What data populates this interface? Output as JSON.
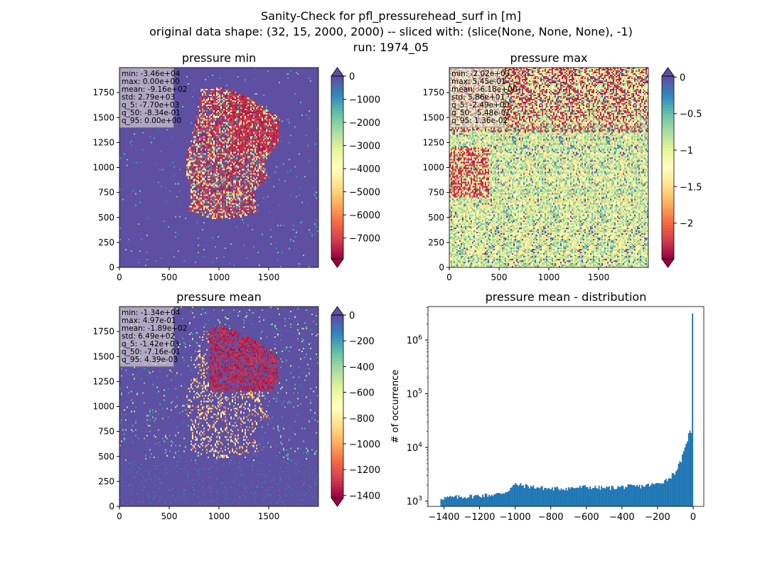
{
  "figure": {
    "title_lines": [
      "Sanity-Check for pfl_pressurehead_surf in [m]",
      "original data shape: (32, 15, 2000, 2000) -- sliced with: (slice(None, None, None), -1)",
      "run: 1974_05"
    ],
    "colormap": "Spectral",
    "extend_color": "#5e4fa2"
  },
  "chart_data": [
    {
      "type": "heatmap",
      "title": "pressure min",
      "xticks": [
        0,
        500,
        1000,
        1500
      ],
      "yticks": [
        0,
        250,
        500,
        750,
        1000,
        1250,
        1500,
        1750
      ],
      "xlim": [
        0,
        2000
      ],
      "ylim": [
        0,
        2000
      ],
      "colorbar": {
        "range": [
          -7900,
          0
        ],
        "ticks": [
          0,
          -1000,
          -2000,
          -3000,
          -4000,
          -5000,
          -6000,
          -7000
        ],
        "extend": "both"
      },
      "stats": [
        "min: -3.46e+04",
        "max: 0.00e+00",
        "mean: -9.16e+02",
        "std: 2.79e+03",
        "q_5: -7.70e+03",
        "q_50: -8.34e-01",
        "q_95: 0.00e+00"
      ]
    },
    {
      "type": "heatmap",
      "title": "pressure max",
      "xticks": [
        0,
        500,
        1000,
        1500
      ],
      "yticks": [
        0,
        250,
        500,
        750,
        1000,
        1250,
        1500,
        1750
      ],
      "xlim": [
        0,
        2000
      ],
      "ylim": [
        0,
        2000
      ],
      "colorbar": {
        "range": [
          -2.49,
          0.0136
        ],
        "ticks": [
          0.0,
          -0.5,
          -1.0,
          -1.5,
          -2.0
        ],
        "extend": "both"
      },
      "stats": [
        "min: -2.02e+03",
        "max: 5.45e-01",
        "mean: -6.18e+00",
        "std: 5.86e+01",
        "q_5: -2.49e+00",
        "q_50: -5.48e-01",
        "q_95: 1.36e-02"
      ]
    },
    {
      "type": "heatmap",
      "title": "pressure mean",
      "xticks": [
        0,
        500,
        1000,
        1500
      ],
      "yticks": [
        0,
        250,
        500,
        750,
        1000,
        1250,
        1500,
        1750
      ],
      "xlim": [
        0,
        2000
      ],
      "ylim": [
        0,
        2000
      ],
      "colorbar": {
        "range": [
          -1420,
          0.00439
        ],
        "ticks": [
          0,
          -200,
          -400,
          -600,
          -800,
          -1000,
          -1200,
          -1400
        ],
        "extend": "both"
      },
      "stats": [
        "min: -1.34e+04",
        "max: 4.97e-01",
        "mean: -1.89e+02",
        "std: 6.49e+02",
        "q_5: -1.42e+03",
        "q_50: -7.16e-01",
        "q_95: 4.39e-03"
      ]
    },
    {
      "type": "bar",
      "title": "pressure mean - distribution",
      "ylabel": "# of occurrence",
      "xlabel": "",
      "yscale": "log",
      "xlim": [
        -1490,
        60
      ],
      "ylim": [
        800,
        4200000
      ],
      "xticks": [
        -1400,
        -1200,
        -1000,
        -800,
        -600,
        -400,
        -200,
        0
      ],
      "xtick_labels": [
        "−1400",
        "−1200",
        "−1000",
        "−800",
        "−600",
        "−400",
        "−200",
        "0"
      ],
      "yticks": [
        1000,
        10000,
        100000,
        1000000
      ],
      "ytick_labels": [
        [
          "10",
          "3"
        ],
        [
          "10",
          "4"
        ],
        [
          "10",
          "5"
        ],
        [
          "10",
          "6"
        ]
      ],
      "color": "#1f77b4",
      "bin_edges_range": [
        -1420,
        0.00439
      ],
      "bins": 200,
      "profile": {
        "x": [
          -1420,
          -1300,
          -1100,
          -1050,
          -1000,
          -900,
          -800,
          -700,
          -600,
          -500,
          -400,
          -300,
          -200,
          -140,
          -100,
          -70,
          -50,
          -35,
          -25,
          -15,
          -8,
          -5,
          0
        ],
        "y": [
          1150,
          1200,
          1350,
          1500,
          2050,
          1850,
          1700,
          1750,
          1850,
          1750,
          1850,
          1900,
          2100,
          2600,
          3500,
          5500,
          8500,
          12000,
          20000,
          19000,
          17000,
          16000,
          3100000
        ]
      }
    }
  ]
}
